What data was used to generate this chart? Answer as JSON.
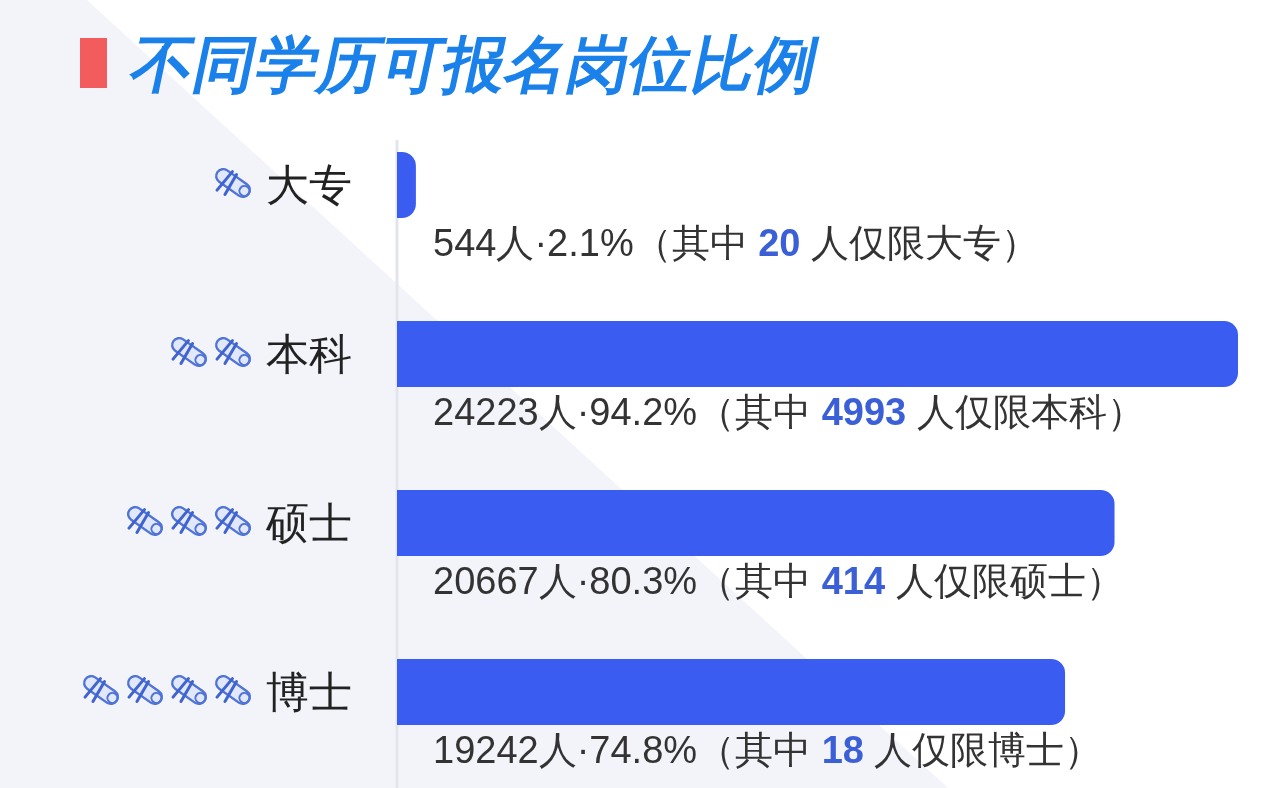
{
  "chart_data": {
    "type": "bar",
    "orientation": "horizontal",
    "title": "不同学历可报名岗位比例",
    "categories": [
      "大专",
      "本科",
      "硕士",
      "博士"
    ],
    "values": [
      544,
      24223,
      20667,
      19242
    ],
    "color": "#3a5cf0",
    "tick_labels": "y",
    "value_labels": [
      "544人·2.1%（其中 20 人仅限大专）",
      "24223人·94.2%（其中 4993 人仅限本科）",
      "20667人·80.3%（其中 414 人仅限硕士）",
      "19242人·74.8%（其中 18 人仅限博士）"
    ]
  }
}
